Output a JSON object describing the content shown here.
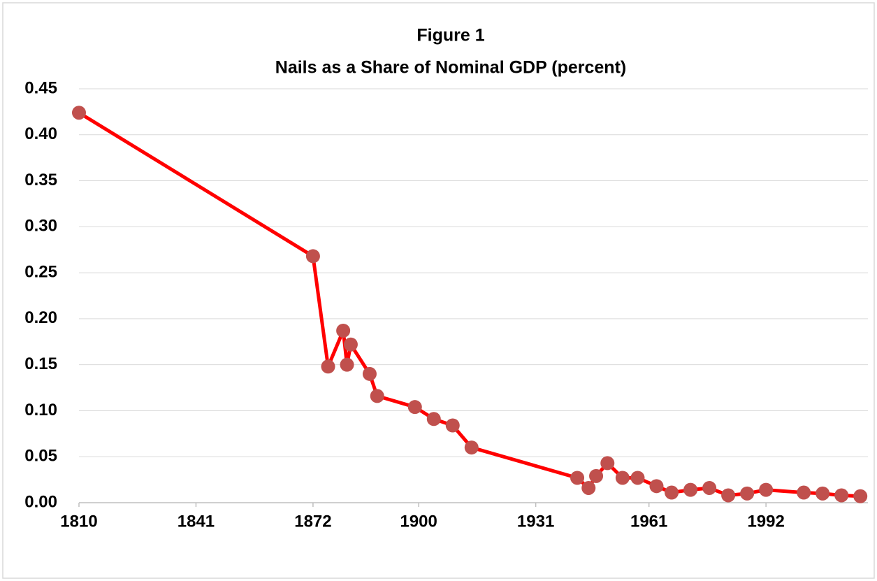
{
  "chart_data": {
    "type": "line",
    "title": "Figure 1",
    "subtitle": "Nails as a Share of Nominal GDP (percent)",
    "x": [
      1810,
      1872,
      1876,
      1880,
      1881,
      1882,
      1887,
      1889,
      1899,
      1904,
      1909,
      1914,
      1942,
      1945,
      1947,
      1950,
      1954,
      1958,
      1963,
      1967,
      1972,
      1977,
      1982,
      1987,
      1992,
      2002,
      2007,
      2012,
      2017
    ],
    "series": [
      {
        "name": "Nails as a Share of Nominal GDP",
        "line_color": "#ff0000",
        "marker_color": "#c0504d",
        "values": [
          0.424,
          0.268,
          0.148,
          0.187,
          0.15,
          0.172,
          0.14,
          0.116,
          0.104,
          0.091,
          0.084,
          0.06,
          0.027,
          0.016,
          0.029,
          0.043,
          0.027,
          0.027,
          0.018,
          0.011,
          0.014,
          0.016,
          0.008,
          0.01,
          0.014,
          0.011,
          0.01,
          0.008,
          0.007
        ]
      }
    ],
    "xlim": [
      1810,
      2019
    ],
    "xticks": [
      1810,
      1841,
      1872,
      1900,
      1931,
      1961,
      1992
    ],
    "ylim": [
      0,
      0.45
    ],
    "yticks": [
      {
        "value": 0,
        "label": "0.00"
      },
      0.05,
      {
        "value": 0.1,
        "label": "0.10"
      },
      0.15,
      {
        "value": 0.2,
        "label": "0.20"
      },
      0.25,
      {
        "value": 0.3,
        "label": "0.30"
      },
      0.35,
      {
        "value": 0.4,
        "label": "0.40"
      },
      0.45
    ],
    "grid": true
  }
}
